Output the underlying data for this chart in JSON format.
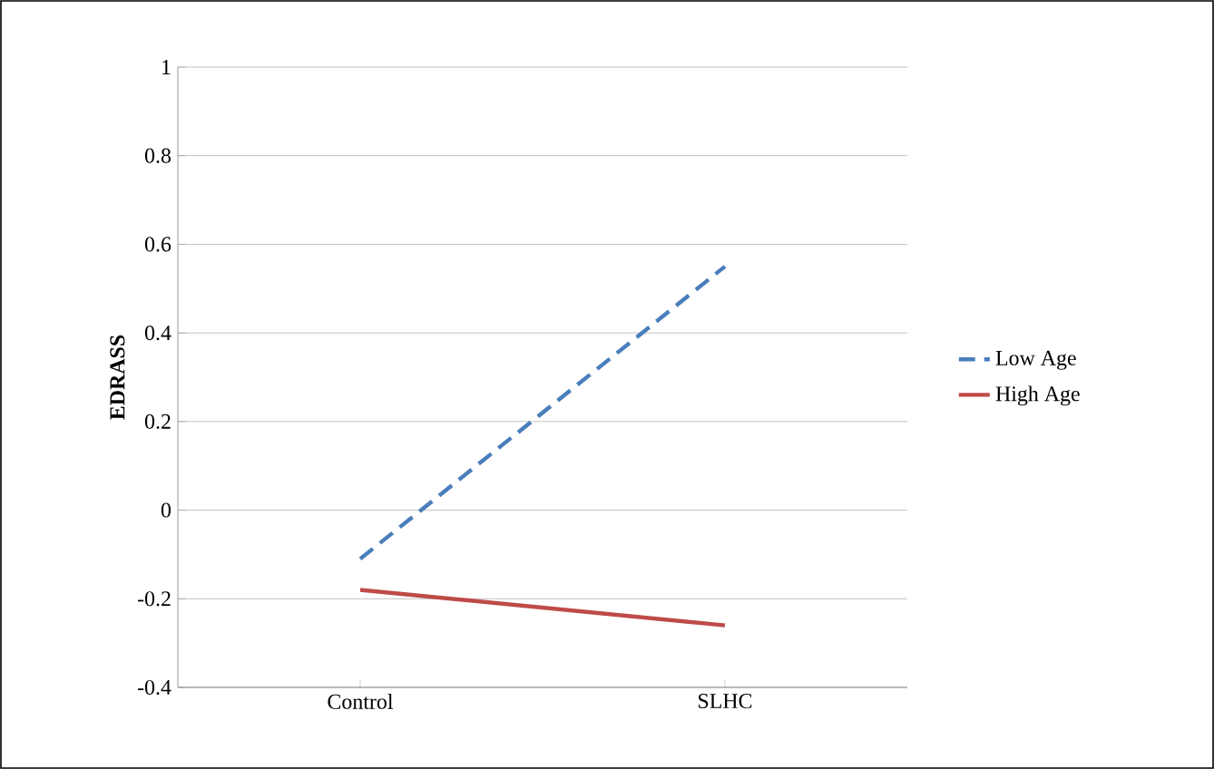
{
  "chart_data": {
    "type": "line",
    "ylabel": "EDRASS",
    "categories": [
      "Control",
      "SLHC"
    ],
    "series": [
      {
        "name": "Low Age",
        "color": "#4a7ebb",
        "line_style": "dashed",
        "values": [
          -0.11,
          0.55
        ]
      },
      {
        "name": "High Age",
        "color": "#be4b48",
        "line_style": "solid",
        "values": [
          -0.18,
          -0.26
        ]
      }
    ],
    "ylim": [
      -0.4,
      1
    ],
    "yticks": [
      -0.4,
      -0.2,
      0,
      0.2,
      0.4,
      0.6,
      0.8,
      1
    ],
    "grid": "y",
    "legend": "right",
    "marker": "none"
  }
}
